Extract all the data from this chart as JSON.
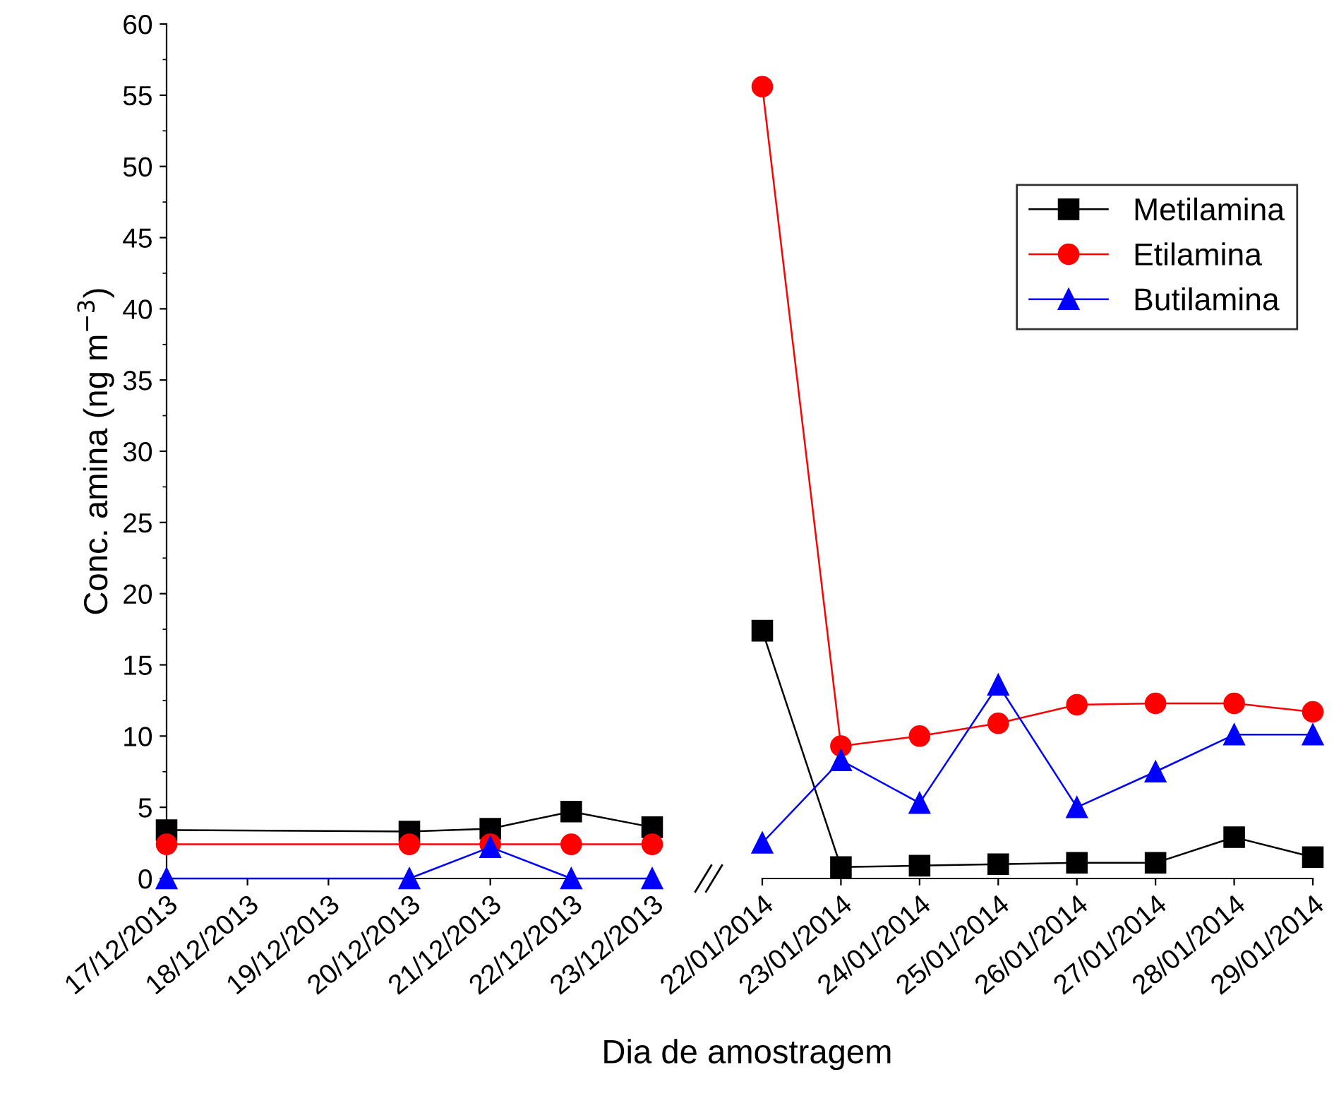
{
  "chart_data": [
    {
      "type": "line",
      "ylabel": "Conc. amina (ng m$^{−3}$)",
      "xlabel": "Dia de amostragem",
      "categories": [
        "17/12/2013",
        "18/12/2013",
        "19/12/2013",
        "20/12/2013",
        "21/12/2013",
        "22/12/2013",
        "23/12/2013"
      ],
      "ylim": [
        0,
        60
      ],
      "yticks": [
        0,
        5,
        10,
        15,
        20,
        25,
        30,
        35,
        40,
        45,
        50,
        55,
        60
      ],
      "grid": false,
      "legend": false,
      "series": [
        {
          "color": "#000000",
          "marker": "square",
          "values": [
            3.4,
            null,
            null,
            3.3,
            3.5,
            4.7,
            3.6
          ]
        },
        {
          "color": "#ff0000",
          "marker": "circle",
          "values": [
            2.4,
            null,
            null,
            2.4,
            2.4,
            2.4,
            2.4
          ]
        },
        {
          "color": "#0000ff",
          "marker": "triangle",
          "values": [
            0,
            null,
            null,
            0,
            2.2,
            0,
            0
          ]
        }
      ]
    },
    {
      "type": "line",
      "categories": [
        "22/01/2014",
        "23/01/2014",
        "24/01/2014",
        "25/01/2014",
        "26/01/2014",
        "27/01/2014",
        "28/01/2014",
        "29/01/2014"
      ],
      "ylim": [
        0,
        60
      ],
      "yticks": [
        0,
        5,
        10,
        15,
        20,
        25,
        30,
        35,
        40,
        45,
        50,
        55,
        60
      ],
      "tick_labels": "x",
      "grid": false,
      "legend": "top right",
      "series": [
        {
          "name": "Metilamina",
          "color": "#000000",
          "marker": "square",
          "values": [
            17.4,
            0.8,
            0.9,
            1.0,
            1.1,
            1.1,
            2.9,
            1.5
          ]
        },
        {
          "name": "Etilamina",
          "color": "#ff0000",
          "marker": "circle",
          "values": [
            55.6,
            9.3,
            10.0,
            10.9,
            12.2,
            12.3,
            12.3,
            11.7
          ]
        },
        {
          "name": "Butilamina",
          "color": "#0000ff",
          "marker": "triangle",
          "values": [
            2.5,
            8.3,
            5.3,
            13.6,
            5.0,
            7.5,
            10.1,
            10.1
          ]
        }
      ]
    }
  ]
}
